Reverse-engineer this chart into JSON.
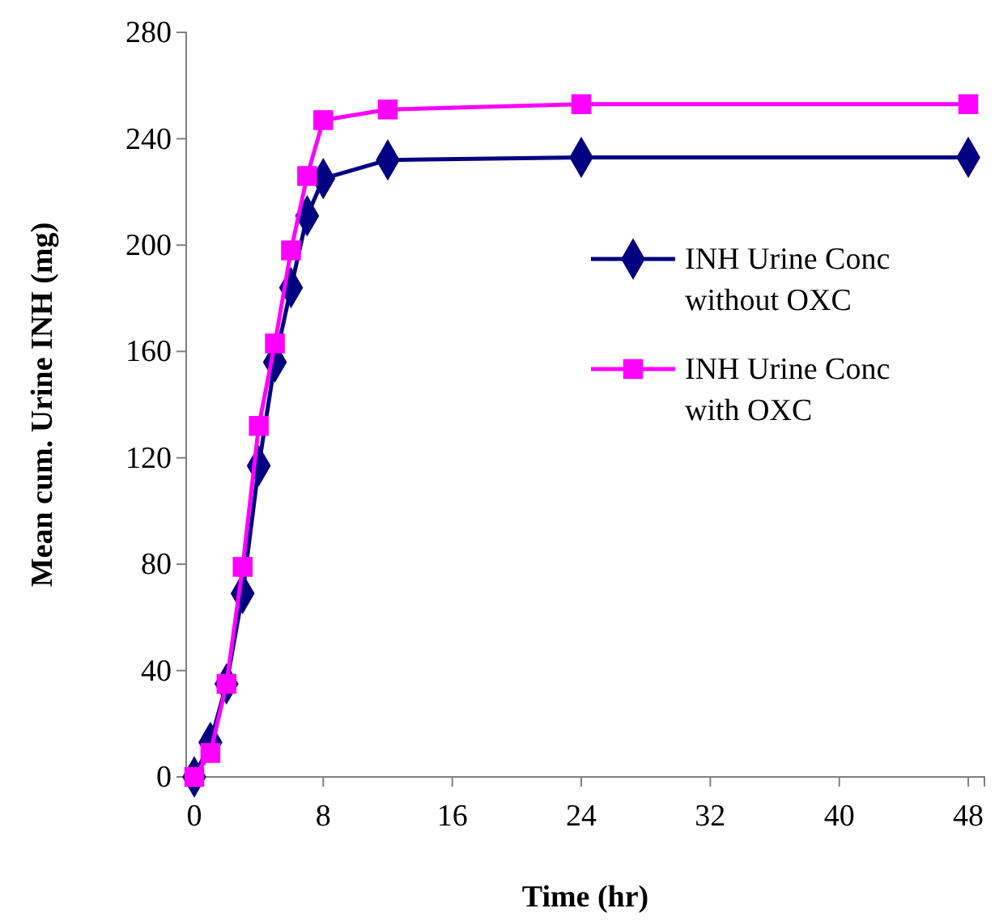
{
  "chart_data": {
    "type": "line",
    "xlabel": "Time (hr)",
    "ylabel": "Mean cum. Urine INH (mg)",
    "x": [
      0,
      1,
      2,
      3,
      4,
      5,
      6,
      7,
      8,
      12,
      24,
      48
    ],
    "series": [
      {
        "name": "INH Urine Conc without OXC",
        "color": "#000080",
        "marker": "diamond",
        "values": [
          0,
          13,
          35,
          69,
          117,
          156,
          184,
          211,
          225,
          232,
          233,
          233
        ]
      },
      {
        "name": "INH Urine Conc with OXC",
        "color": "#ff00ff",
        "marker": "square",
        "values": [
          0,
          9,
          35,
          79,
          132,
          163,
          198,
          226,
          247,
          251,
          253,
          253
        ]
      }
    ],
    "xlim": [
      -0.5,
      49
    ],
    "xticks": [
      0,
      8,
      16,
      24,
      32,
      40,
      48
    ],
    "ylim": [
      0,
      280
    ],
    "yticks": [
      0,
      40,
      80,
      120,
      160,
      200,
      240,
      280
    ],
    "grid": false,
    "legend": "right",
    "line_style": "solid"
  }
}
